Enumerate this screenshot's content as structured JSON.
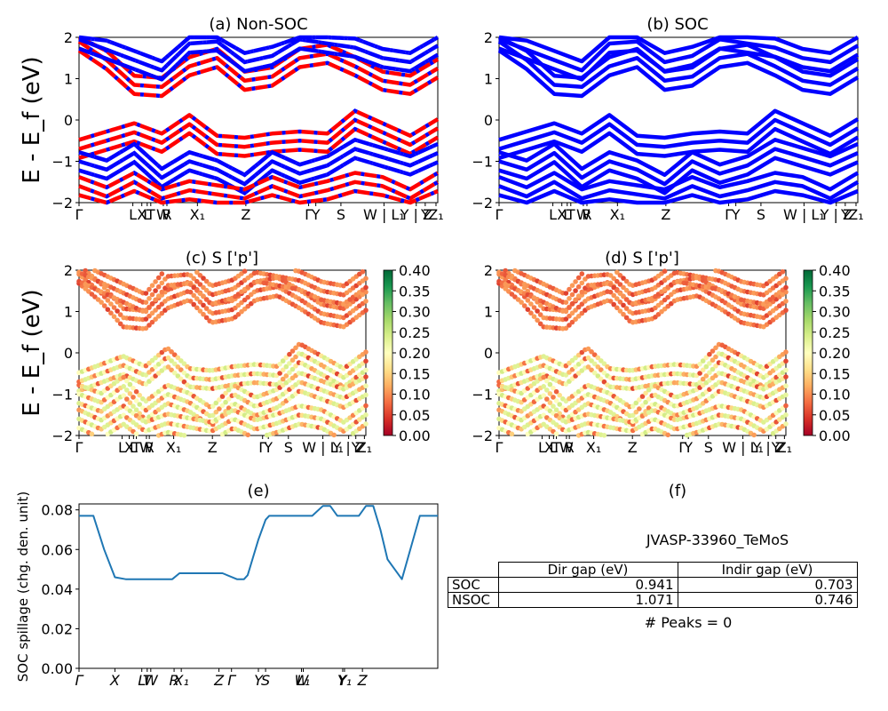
{
  "chart_data": [
    {
      "type": "line",
      "title": "(a) Non-SOC",
      "ylabel": "E - E_f (eV)",
      "ylim": [
        -2,
        2
      ],
      "yticks": [
        "2",
        "1",
        "0",
        "−1",
        "−2"
      ],
      "kpath_labels": [
        "Γ",
        "L",
        "X",
        "L",
        "T",
        "W",
        "R",
        "X₁",
        "Z",
        "Γ",
        "Y",
        "S",
        "W | L₁",
        "Y | Z",
        "Y",
        "Z₁"
      ],
      "series": [
        {
          "name": "",
          "color": "#ff0000",
          "values": [
            1.9,
            1.45,
            0.85,
            0.8,
            1.3,
            1.5,
            0.95,
            1.05,
            1.5,
            1.6,
            1.3,
            0.95,
            0.85,
            1.25
          ]
        },
        {
          "name": "",
          "color": "#0000ff",
          "values": [
            1.95,
            1.7,
            1.45,
            1.2,
            1.85,
            1.9,
            1.4,
            1.55,
            1.95,
            1.85,
            1.75,
            1.5,
            1.4,
            1.8
          ]
        },
        {
          "name": "",
          "color": "#ff0000",
          "values": [
            -0.7,
            -0.5,
            -0.3,
            -0.55,
            -0.1,
            -0.6,
            -0.65,
            -0.55,
            -0.5,
            -0.55,
            0.0,
            -0.3,
            -0.6,
            -0.2
          ]
        },
        {
          "name": "",
          "color": "#0000ff",
          "values": [
            -1.0,
            -1.2,
            -0.8,
            -1.4,
            -1.0,
            -1.2,
            -1.55,
            -1.0,
            -1.3,
            -1.1,
            -0.7,
            -0.9,
            -1.1,
            -0.8
          ]
        },
        {
          "name": "",
          "color": "#ff0000",
          "values": [
            -1.6,
            -1.85,
            -1.5,
            -1.9,
            -1.7,
            -1.8,
            -1.9,
            -1.6,
            -1.85,
            -1.7,
            -1.5,
            -1.6,
            -1.9,
            -1.5
          ]
        }
      ]
    },
    {
      "type": "line",
      "title": "(b) SOC",
      "ylim": [
        -2,
        2
      ],
      "yticks": [
        "2",
        "1",
        "0",
        "−1",
        "−2"
      ],
      "kpath_labels": [
        "Γ",
        "L",
        "X",
        "L",
        "T",
        "W",
        "R",
        "X₁",
        "Z",
        "Γ",
        "Y",
        "S",
        "W | L₁",
        "Y | Z",
        "Y",
        "Z₁"
      ],
      "series": [
        {
          "name": "",
          "color": "#0000ff",
          "values": [
            1.9,
            1.45,
            0.85,
            0.8,
            1.3,
            1.5,
            0.95,
            1.05,
            1.5,
            1.6,
            1.3,
            0.95,
            0.85,
            1.25
          ]
        },
        {
          "name": "",
          "color": "#0000ff",
          "values": [
            1.95,
            1.7,
            1.45,
            1.2,
            1.85,
            1.9,
            1.4,
            1.55,
            1.95,
            1.85,
            1.75,
            1.5,
            1.4,
            1.8
          ]
        },
        {
          "name": "",
          "color": "#0000ff",
          "values": [
            -0.7,
            -0.5,
            -0.3,
            -0.55,
            -0.1,
            -0.6,
            -0.65,
            -0.55,
            -0.5,
            -0.55,
            0.0,
            -0.3,
            -0.6,
            -0.2
          ]
        },
        {
          "name": "",
          "color": "#0000ff",
          "values": [
            -1.0,
            -1.2,
            -0.8,
            -1.4,
            -1.0,
            -1.2,
            -1.55,
            -1.0,
            -1.3,
            -1.1,
            -0.7,
            -0.9,
            -1.1,
            -0.8
          ]
        },
        {
          "name": "",
          "color": "#0000ff",
          "values": [
            -1.6,
            -1.85,
            -1.5,
            -1.9,
            -1.7,
            -1.8,
            -1.9,
            -1.6,
            -1.85,
            -1.7,
            -1.5,
            -1.6,
            -1.9,
            -1.5
          ]
        }
      ]
    },
    {
      "type": "scatter",
      "title": "(c)  S ['p']",
      "ylabel": "E - E_f (eV)",
      "ylim": [
        -2,
        2
      ],
      "colorbar": {
        "min": 0.0,
        "max": 0.4,
        "ticks": [
          "0.40",
          "0.35",
          "0.30",
          "0.25",
          "0.20",
          "0.15",
          "0.10",
          "0.05",
          "0.00"
        ],
        "colormap": "RdYlGn"
      },
      "kpath_labels": [
        "Γ",
        "L",
        "X",
        "L",
        "T",
        "W",
        "R",
        "X₁",
        "Z",
        "Γ",
        "Y",
        "S",
        "W | L₁",
        "Y | Z",
        "Y",
        "Z₁"
      ]
    },
    {
      "type": "scatter",
      "title": "(d) S ['p']",
      "ylim": [
        -2,
        2
      ],
      "colorbar": {
        "min": 0.0,
        "max": 0.4,
        "ticks": [
          "0.40",
          "0.35",
          "0.30",
          "0.25",
          "0.20",
          "0.15",
          "0.10",
          "0.05",
          "0.00"
        ],
        "colormap": "RdYlGn"
      },
      "kpath_labels": [
        "Γ",
        "L",
        "X",
        "L",
        "T",
        "W",
        "R",
        "X₁",
        "Z",
        "Γ",
        "Y",
        "S",
        "W | L₁",
        "Y | Z",
        "Y",
        "Z₁"
      ]
    },
    {
      "type": "line",
      "title": "(e)",
      "ylabel": "SOC spillage (chg. den. unit)",
      "ylim": [
        0.0,
        0.083
      ],
      "yticks": [
        "0.08",
        "0.06",
        "0.04",
        "0.02",
        "0.00"
      ],
      "kpath_labels": [
        "Γ",
        "X",
        "L",
        "T",
        "W",
        "R",
        "X₁",
        "Z",
        "Γ",
        "Y",
        "S",
        "W",
        "L₁",
        "Y",
        "Y₁",
        "Z"
      ],
      "x": [
        0,
        0.04,
        0.07,
        0.1,
        0.13,
        0.16,
        0.2,
        0.23,
        0.26,
        0.28,
        0.3,
        0.34,
        0.37,
        0.4,
        0.44,
        0.46,
        0.47,
        0.5,
        0.52,
        0.53,
        0.56,
        0.6,
        0.65,
        0.68,
        0.7,
        0.72,
        0.74,
        0.76,
        0.78,
        0.8,
        0.82,
        0.84,
        0.86,
        0.9,
        0.95,
        1.0
      ],
      "series": [
        {
          "name": "",
          "color": "#1f77b4",
          "values": [
            0.077,
            0.077,
            0.06,
            0.046,
            0.045,
            0.045,
            0.045,
            0.045,
            0.045,
            0.048,
            0.048,
            0.048,
            0.048,
            0.048,
            0.045,
            0.045,
            0.047,
            0.065,
            0.075,
            0.077,
            0.077,
            0.077,
            0.077,
            0.082,
            0.082,
            0.077,
            0.077,
            0.077,
            0.077,
            0.082,
            0.082,
            0.07,
            0.055,
            0.045,
            0.077,
            0.077
          ]
        }
      ]
    }
  ],
  "panel_f": {
    "title": "(f)",
    "material": "JVASP-33960_TeMoS",
    "table": {
      "headers": [
        "",
        "Dir gap (eV)",
        "Indir gap (eV)"
      ],
      "rows": [
        [
          "SOC",
          "0.941",
          "0.703"
        ],
        [
          "NSOC",
          "1.071",
          "0.746"
        ]
      ]
    },
    "peaks": "# Peaks = 0"
  }
}
